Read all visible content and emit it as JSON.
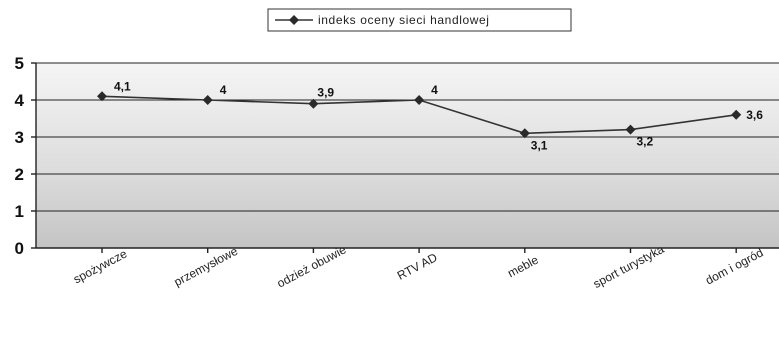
{
  "chart_data": {
    "type": "line",
    "title": "",
    "xlabel": "",
    "ylabel": "",
    "ylim": [
      0,
      5
    ],
    "yticks": [
      "0",
      "1",
      "2",
      "3",
      "4",
      "5"
    ],
    "grid": true,
    "legend_position": "top-center",
    "categories": [
      "spożywcze",
      "przemysłowe",
      "odzież obuwie",
      "RTV AD",
      "meble",
      "sport turystyka",
      "dom i ogród"
    ],
    "series": [
      {
        "name": "indeks oceny sieci handlowej",
        "values": [
          4.1,
          4,
          3.9,
          4,
          3.1,
          3.2,
          3.6
        ],
        "labels": [
          "4,1",
          "4",
          "3,9",
          "4",
          "3,1",
          "3,2",
          "3,6"
        ]
      }
    ],
    "colors": {
      "line": "#333333",
      "marker": "#2a2a2a",
      "grid": "#222222"
    }
  }
}
